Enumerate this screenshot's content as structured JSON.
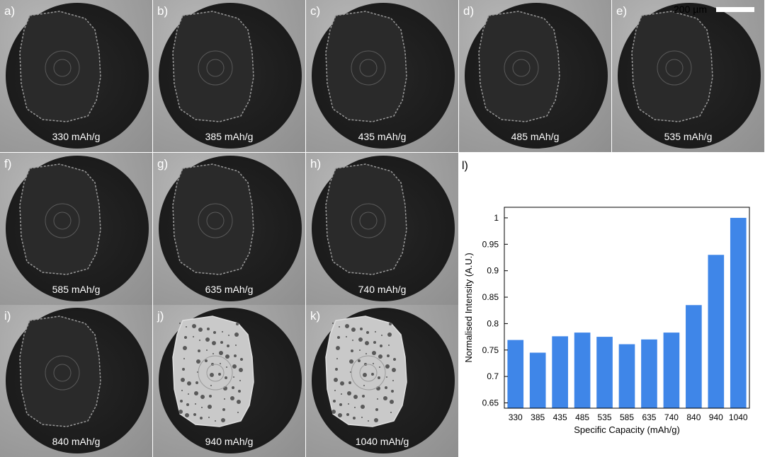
{
  "scale_bar": {
    "label": "200 µm"
  },
  "panels": [
    {
      "letter": "a)",
      "caption": "330 mAh/g",
      "style": "dark"
    },
    {
      "letter": "b)",
      "caption": "385 mAh/g",
      "style": "dark"
    },
    {
      "letter": "c)",
      "caption": "435 mAh/g",
      "style": "dark"
    },
    {
      "letter": "d)",
      "caption": "485 mAh/g",
      "style": "dark"
    },
    {
      "letter": "e)",
      "caption": "535 mAh/g",
      "style": "dark"
    },
    {
      "letter": "f)",
      "caption": "585 mAh/g",
      "style": "dark"
    },
    {
      "letter": "g)",
      "caption": "635 mAh/g",
      "style": "dark"
    },
    {
      "letter": "h)",
      "caption": "740 mAh/g",
      "style": "dark"
    },
    {
      "letter": "i)",
      "caption": "840 mAh/g",
      "style": "dark"
    },
    {
      "letter": "j)",
      "caption": "940 mAh/g",
      "style": "bright"
    },
    {
      "letter": "k)",
      "caption": "1040 mAh/g",
      "style": "bright"
    }
  ],
  "chart_data": {
    "type": "bar",
    "panel_label": "l)",
    "categories": [
      "330",
      "385",
      "435",
      "485",
      "535",
      "585",
      "635",
      "740",
      "840",
      "940",
      "1040"
    ],
    "values": [
      0.769,
      0.745,
      0.776,
      0.783,
      0.775,
      0.761,
      0.77,
      0.783,
      0.835,
      0.93,
      1.0
    ],
    "xlabel": "Specific Capacity (mAh/g)",
    "ylabel": "Normalised Intensity (A.U.)",
    "ylim": [
      0.64,
      1.02
    ],
    "yticks": [
      0.65,
      0.7,
      0.75,
      0.8,
      0.85,
      0.9,
      0.95,
      1
    ],
    "ytick_labels": [
      "0.65",
      "0.7",
      "0.75",
      "0.8",
      "0.85",
      "0.9",
      "0.95",
      "1"
    ],
    "bar_color": "#3f86e8",
    "grid": false
  }
}
